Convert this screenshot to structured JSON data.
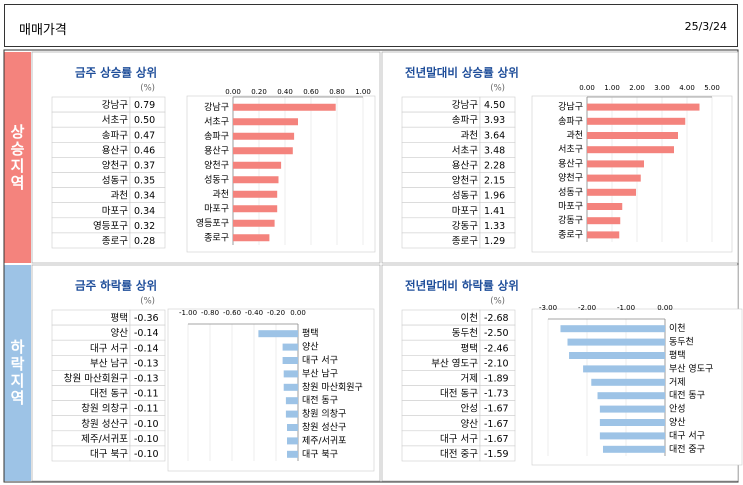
{
  "header": {
    "title": "매매가격",
    "date": "25/3/24"
  },
  "sections": [
    "상승지역",
    "하락지역"
  ],
  "chart_data": [
    {
      "type": "bar",
      "title": "금주 상승률 상위",
      "unit": "(%)",
      "categories": [
        "강남구",
        "서초구",
        "송파구",
        "용산구",
        "양천구",
        "성동구",
        "과천",
        "마포구",
        "영등포구",
        "종로구"
      ],
      "values": [
        0.79,
        0.5,
        0.47,
        0.46,
        0.37,
        0.35,
        0.34,
        0.34,
        0.32,
        0.28
      ],
      "value_labels": [
        "0.79",
        "0.50",
        "0.47",
        "0.46",
        "0.37",
        "0.35",
        "0.34",
        "0.34",
        "0.32",
        "0.28"
      ],
      "color": "#f4837d",
      "xlim": [
        0,
        1
      ],
      "xticks": [
        {
          "value": 0,
          "label": "0.00"
        },
        {
          "value": 0.2,
          "label": "0.20"
        },
        {
          "value": 0.4,
          "label": "0.40"
        },
        {
          "value": 0.6,
          "label": "0.60"
        },
        {
          "value": 0.8,
          "label": "0.80"
        },
        {
          "value": 1,
          "label": "1.00"
        }
      ],
      "grid": true
    },
    {
      "type": "bar",
      "title": "전년말대비 상승률 상위",
      "unit": "(%)",
      "categories": [
        "강남구",
        "송파구",
        "과천",
        "서초구",
        "용산구",
        "양천구",
        "성동구",
        "마포구",
        "강동구",
        "종로구"
      ],
      "values": [
        4.5,
        3.93,
        3.64,
        3.48,
        2.28,
        2.15,
        1.96,
        1.41,
        1.33,
        1.29
      ],
      "value_labels": [
        "4.50",
        "3.93",
        "3.64",
        "3.48",
        "2.28",
        "2.15",
        "1.96",
        "1.41",
        "1.33",
        "1.29"
      ],
      "color": "#f4837d",
      "xlim": [
        0,
        5
      ],
      "xticks": [
        {
          "value": 0,
          "label": "0.00"
        },
        {
          "value": 1,
          "label": "1.00"
        },
        {
          "value": 2,
          "label": "2.00"
        },
        {
          "value": 3,
          "label": "3.00"
        },
        {
          "value": 4,
          "label": "4.00"
        },
        {
          "value": 5,
          "label": "5.00"
        }
      ],
      "grid": true
    },
    {
      "type": "bar",
      "title": "금주 하락률 상위",
      "unit": "(%)",
      "categories": [
        "평택",
        "양산",
        "대구 서구",
        "부산 남구",
        "창원 마산회원구",
        "대전 동구",
        "창원 의창구",
        "창원 성산구",
        "제주/서귀포",
        "대구 북구"
      ],
      "values": [
        -0.36,
        -0.14,
        -0.14,
        -0.13,
        -0.13,
        -0.11,
        -0.11,
        -0.1,
        -0.1,
        -0.1
      ],
      "value_labels": [
        "-0.36",
        "-0.14",
        "-0.14",
        "-0.13",
        "-0.13",
        "-0.11",
        "-0.11",
        "-0.10",
        "-0.10",
        "-0.10"
      ],
      "color": "#9dc3e6",
      "xlim": [
        -1,
        0
      ],
      "xticks": [
        {
          "value": -1,
          "label": "-1.00"
        },
        {
          "value": -0.8,
          "label": "-0.80"
        },
        {
          "value": -0.6,
          "label": "-0.60"
        },
        {
          "value": -0.4,
          "label": "-0.40"
        },
        {
          "value": -0.2,
          "label": "-0.20"
        },
        {
          "value": 0,
          "label": "0.00"
        }
      ],
      "grid": true
    },
    {
      "type": "bar",
      "title": "전년말대비 하락률 상위",
      "unit": "(%)",
      "categories": [
        "이천",
        "동두천",
        "평택",
        "부산 영도구",
        "거제",
        "대전 동구",
        "안성",
        "양산",
        "대구 서구",
        "대전 중구"
      ],
      "values": [
        -2.68,
        -2.5,
        -2.46,
        -2.1,
        -1.89,
        -1.73,
        -1.67,
        -1.67,
        -1.67,
        -1.59
      ],
      "value_labels": [
        "-2.68",
        "-2.50",
        "-2.46",
        "-2.10",
        "-1.89",
        "-1.73",
        "-1.67",
        "-1.67",
        "-1.67",
        "-1.59"
      ],
      "color": "#9dc3e6",
      "xlim": [
        -3,
        0
      ],
      "xticks": [
        {
          "value": -3,
          "label": "-3.00"
        },
        {
          "value": -2,
          "label": "-2.00"
        },
        {
          "value": -1,
          "label": "-1.00"
        },
        {
          "value": 0,
          "label": "0.00"
        }
      ],
      "grid": true
    }
  ]
}
